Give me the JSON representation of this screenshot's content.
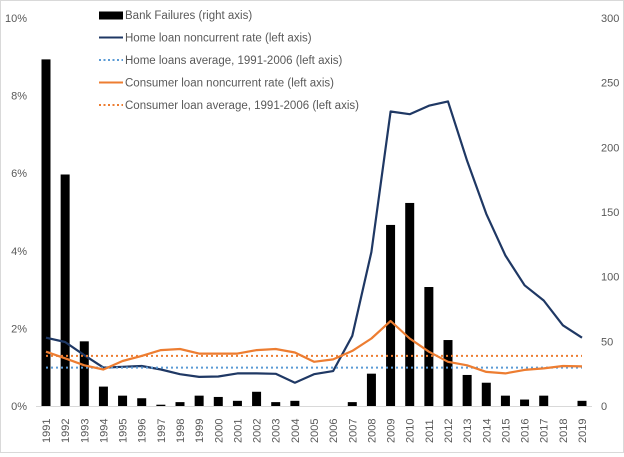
{
  "chart_data": {
    "type": "bar+line",
    "title": "",
    "categories": [
      "1991",
      "1992",
      "1993",
      "1994",
      "1995",
      "1996",
      "1997",
      "1998",
      "1999",
      "2000",
      "2001",
      "2002",
      "2003",
      "2004",
      "2005",
      "2006",
      "2007",
      "2008",
      "2009",
      "2010",
      "2011",
      "2012",
      "2013",
      "2014",
      "2015",
      "2016",
      "2017",
      "2018",
      "2019"
    ],
    "left_axis": {
      "ylim": [
        0,
        10
      ],
      "ticks": [
        "0%",
        "2%",
        "4%",
        "6%",
        "8%",
        "10%"
      ],
      "tick_values": [
        0,
        2,
        4,
        6,
        8,
        10
      ]
    },
    "right_axis": {
      "ylim": [
        0,
        300
      ],
      "ticks": [
        "0",
        "50",
        "100",
        "150",
        "200",
        "250",
        "300"
      ],
      "tick_values": [
        0,
        50,
        100,
        150,
        200,
        250,
        300
      ]
    },
    "series": [
      {
        "name": "Bank Failures (right axis)",
        "type": "bar",
        "axis": "right",
        "color": "#000000",
        "values": [
          268,
          179,
          50,
          15,
          8,
          6,
          1,
          3,
          8,
          7,
          4,
          11,
          3,
          4,
          0,
          0,
          3,
          25,
          140,
          157,
          92,
          51,
          24,
          18,
          8,
          5,
          8,
          0,
          4
        ]
      },
      {
        "name": "Home loan noncurrent rate (left axis)",
        "type": "line",
        "axis": "left",
        "color": "#1f3864",
        "dash": "solid",
        "values": [
          1.76,
          1.65,
          1.31,
          0.99,
          1.01,
          1.03,
          0.94,
          0.82,
          0.75,
          0.76,
          0.84,
          0.84,
          0.83,
          0.6,
          0.82,
          0.9,
          1.81,
          3.97,
          7.59,
          7.52,
          7.74,
          7.85,
          6.32,
          4.95,
          3.88,
          3.11,
          2.72,
          2.08,
          1.76
        ]
      },
      {
        "name": "Home loans average, 1991-2006 (left axis)",
        "type": "line",
        "axis": "left",
        "color": "#5b9bd5",
        "dash": "dotted",
        "values": [
          0.99,
          0.99,
          0.99,
          0.99,
          0.99,
          0.99,
          0.99,
          0.99,
          0.99,
          0.99,
          0.99,
          0.99,
          0.99,
          0.99,
          0.99,
          0.99,
          0.99,
          0.99,
          0.99,
          0.99,
          0.99,
          0.99,
          0.99,
          0.99,
          0.99,
          0.99,
          0.99,
          0.99,
          0.99
        ]
      },
      {
        "name": "Consumer loan noncurrent rate (left axis)",
        "type": "line",
        "axis": "left",
        "color": "#ed7d31",
        "dash": "solid",
        "values": [
          1.4,
          1.23,
          1.05,
          0.94,
          1.16,
          1.29,
          1.44,
          1.47,
          1.35,
          1.35,
          1.35,
          1.44,
          1.47,
          1.38,
          1.14,
          1.2,
          1.42,
          1.74,
          2.19,
          1.74,
          1.4,
          1.14,
          1.05,
          0.88,
          0.84,
          0.93,
          0.97,
          1.03,
          1.02
        ]
      },
      {
        "name": "Consumer loan average, 1991-2006 (left axis)",
        "type": "line",
        "axis": "left",
        "color": "#ed7d31",
        "dash": "dotted",
        "values": [
          1.29,
          1.29,
          1.29,
          1.29,
          1.29,
          1.29,
          1.29,
          1.29,
          1.29,
          1.29,
          1.29,
          1.29,
          1.29,
          1.29,
          1.29,
          1.29,
          1.29,
          1.29,
          1.29,
          1.29,
          1.29,
          1.29,
          1.29,
          1.29,
          1.29,
          1.29,
          1.29,
          1.29,
          1.29
        ]
      }
    ],
    "legend": "top-center",
    "grid": false
  }
}
